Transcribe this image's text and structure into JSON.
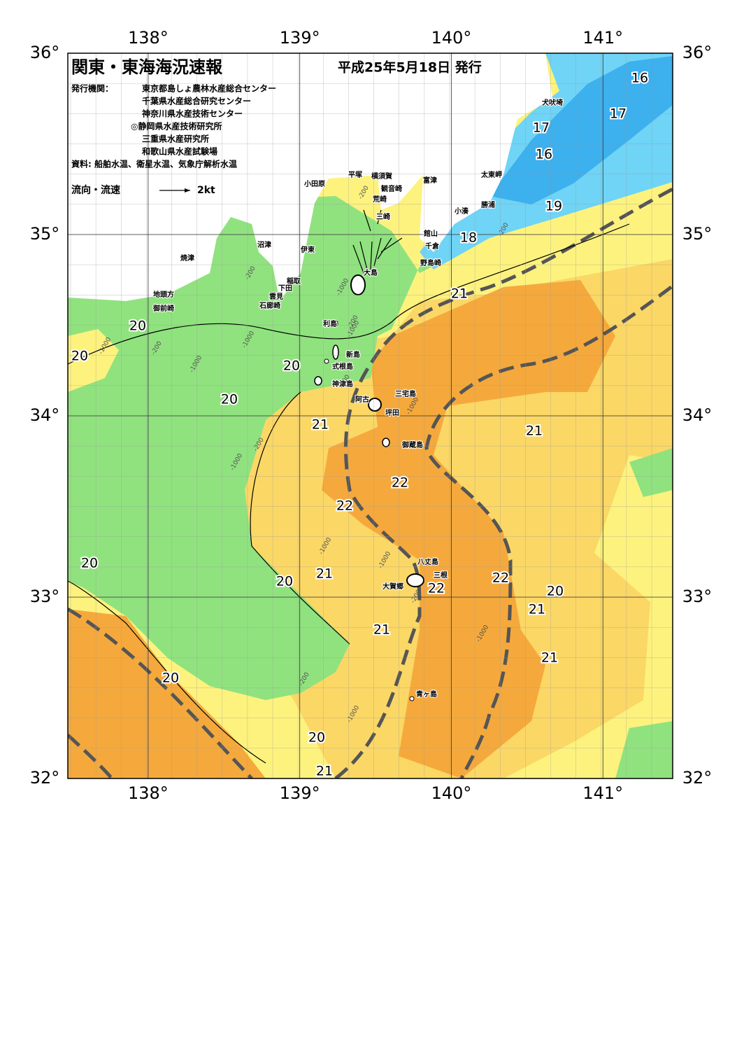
{
  "header": {
    "title": "関東・東海海況速報",
    "date": "平成25年5月18日 発行"
  },
  "issuers": {
    "label": "発行機関：",
    "list": [
      "東京都島しょ農林水産総合センター",
      "千葉県水産総合研究センター",
      "神奈川県水産技術センター",
      "◎静岡県水産技術研究所",
      "三重県水産研究所",
      "和歌山県水産試験場"
    ]
  },
  "source": "資料: 船舶水温、衛星水温、気象庁解析水温",
  "legend": {
    "label": "流向・流速",
    "speed": "2kt"
  },
  "map": {
    "xlim": [
      137.47,
      141.46
    ],
    "ylim": [
      32,
      36
    ],
    "xticks": [
      {
        "value": 138,
        "label": "138°"
      },
      {
        "value": 139,
        "label": "139°"
      },
      {
        "value": 140,
        "label": "140°"
      },
      {
        "value": 141,
        "label": "141°"
      }
    ],
    "yticks": [
      {
        "value": 32,
        "label": "32°"
      },
      {
        "value": 33,
        "label": "33°"
      },
      {
        "value": 34,
        "label": "34°"
      },
      {
        "value": 35,
        "label": "35°"
      },
      {
        "value": 36,
        "label": "36°"
      }
    ]
  },
  "places": [
    "小田原",
    "平塚",
    "横須賀",
    "富津",
    "観音崎",
    "荒崎",
    "三崎",
    "犬吠埼",
    "太東岬",
    "勝浦",
    "小湊",
    "館山",
    "千倉",
    "野島崎",
    "沼津",
    "伊東",
    "焼津",
    "稲取",
    "下田",
    "雲見",
    "石廊崎",
    "大島",
    "地頭方",
    "御前崎",
    "利島",
    "新島",
    "式根島",
    "神津島",
    "三宅島",
    "阿古",
    "坪田",
    "御蔵島",
    "八丈島",
    "三根",
    "大賀郷",
    "青ヶ島"
  ],
  "isotherm_labels": [
    "16",
    "16",
    "17",
    "17",
    "19",
    "18",
    "21",
    "20",
    "20",
    "20",
    "20",
    "21",
    "21",
    "22",
    "22",
    "20",
    "21",
    "20",
    "22",
    "22",
    "20",
    "21",
    "21",
    "21",
    "20",
    "20",
    "21"
  ],
  "depth_labels": [
    "-200",
    "-1000",
    "-200",
    "-1000",
    "-200",
    "-1000",
    "-200",
    "-1000",
    "-200",
    "-1000",
    "-200",
    "-1000",
    "-1000",
    "-1000",
    "-1000",
    "-200",
    "-1000",
    "-200",
    "-1000",
    "-200"
  ]
}
